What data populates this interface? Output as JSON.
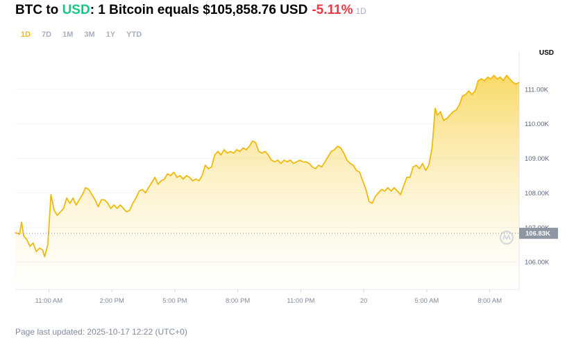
{
  "header": {
    "base": "BTC",
    "to_word": "to",
    "quote": "USD",
    "statement": ": 1 Bitcoin equals $105,858.76 USD",
    "change": "-5.11%",
    "period": "1D"
  },
  "ranges": [
    "1D",
    "7D",
    "1M",
    "3M",
    "1Y",
    "YTD"
  ],
  "active_range": "1D",
  "unit_label": "USD",
  "footer": "Page last updated: 2025-10-17 12:22 (UTC+0)",
  "colors": {
    "line": "#f0b90b",
    "positive": "#16c784",
    "negative": "#ea3943",
    "current_badge": "#8f96a3"
  },
  "watermark_icon": "coinmarketcap-logo-icon",
  "chart_data": {
    "type": "area",
    "x_unit": "hours from 11:00 AM (Oct 19)",
    "y_unit": "thousand USD",
    "ylim": [
      105.2,
      111.9
    ],
    "y_ticks": [
      106,
      107,
      108,
      109,
      110,
      111
    ],
    "y_tick_labels": [
      "106.00K",
      "107.00K",
      "108.00K",
      "109.00K",
      "110.00K",
      "111.00K"
    ],
    "x_ticks": [
      0,
      3,
      6,
      9,
      12,
      15,
      18,
      21
    ],
    "x_tick_labels": [
      "11:00 AM",
      "2:00 PM",
      "5:00 PM",
      "8:00 PM",
      "11:00 PM",
      "20",
      "5:00 AM",
      "8:00 AM"
    ],
    "current_value": 106.83,
    "current_label": "106.83K",
    "grid": true,
    "points": [
      [
        -1.6,
        106.85
      ],
      [
        -1.5,
        106.83
      ],
      [
        -1.4,
        106.8
      ],
      [
        -1.3,
        107.15
      ],
      [
        -1.2,
        106.75
      ],
      [
        -1.05,
        106.65
      ],
      [
        -0.9,
        106.45
      ],
      [
        -0.75,
        106.55
      ],
      [
        -0.6,
        106.3
      ],
      [
        -0.45,
        106.4
      ],
      [
        -0.3,
        106.35
      ],
      [
        -0.2,
        106.15
      ],
      [
        -0.05,
        106.5
      ],
      [
        0.1,
        107.95
      ],
      [
        0.25,
        107.5
      ],
      [
        0.4,
        107.35
      ],
      [
        0.55,
        107.45
      ],
      [
        0.7,
        107.55
      ],
      [
        0.85,
        107.85
      ],
      [
        1.0,
        107.7
      ],
      [
        1.15,
        107.85
      ],
      [
        1.3,
        107.65
      ],
      [
        1.45,
        107.8
      ],
      [
        1.6,
        107.95
      ],
      [
        1.75,
        108.15
      ],
      [
        1.9,
        108.1
      ],
      [
        2.05,
        107.95
      ],
      [
        2.2,
        107.8
      ],
      [
        2.35,
        107.6
      ],
      [
        2.5,
        107.8
      ],
      [
        2.65,
        107.8
      ],
      [
        2.8,
        107.7
      ],
      [
        2.95,
        107.55
      ],
      [
        3.1,
        107.65
      ],
      [
        3.25,
        107.55
      ],
      [
        3.4,
        107.65
      ],
      [
        3.55,
        107.55
      ],
      [
        3.7,
        107.45
      ],
      [
        3.85,
        107.5
      ],
      [
        4.0,
        107.7
      ],
      [
        4.15,
        107.85
      ],
      [
        4.3,
        108.05
      ],
      [
        4.45,
        108.1
      ],
      [
        4.6,
        108.0
      ],
      [
        4.75,
        108.15
      ],
      [
        4.9,
        108.3
      ],
      [
        5.05,
        108.45
      ],
      [
        5.2,
        108.25
      ],
      [
        5.35,
        108.35
      ],
      [
        5.5,
        108.4
      ],
      [
        5.65,
        108.55
      ],
      [
        5.8,
        108.5
      ],
      [
        5.95,
        108.6
      ],
      [
        6.1,
        108.45
      ],
      [
        6.25,
        108.5
      ],
      [
        6.4,
        108.4
      ],
      [
        6.55,
        108.5
      ],
      [
        6.7,
        108.45
      ],
      [
        6.85,
        108.35
      ],
      [
        7.0,
        108.4
      ],
      [
        7.15,
        108.35
      ],
      [
        7.3,
        108.5
      ],
      [
        7.45,
        108.8
      ],
      [
        7.6,
        108.7
      ],
      [
        7.75,
        108.75
      ],
      [
        7.9,
        109.1
      ],
      [
        8.05,
        109.2
      ],
      [
        8.2,
        109.1
      ],
      [
        8.35,
        109.25
      ],
      [
        8.5,
        109.15
      ],
      [
        8.65,
        109.2
      ],
      [
        8.8,
        109.15
      ],
      [
        8.95,
        109.25
      ],
      [
        9.1,
        109.2
      ],
      [
        9.25,
        109.3
      ],
      [
        9.4,
        109.25
      ],
      [
        9.55,
        109.35
      ],
      [
        9.7,
        109.5
      ],
      [
        9.85,
        109.45
      ],
      [
        10.0,
        109.2
      ],
      [
        10.15,
        109.15
      ],
      [
        10.3,
        109.2
      ],
      [
        10.45,
        109.1
      ],
      [
        10.6,
        108.95
      ],
      [
        10.75,
        108.9
      ],
      [
        10.9,
        108.95
      ],
      [
        11.05,
        108.85
      ],
      [
        11.2,
        108.95
      ],
      [
        11.35,
        108.9
      ],
      [
        11.5,
        108.95
      ],
      [
        11.65,
        108.85
      ],
      [
        11.8,
        108.9
      ],
      [
        11.95,
        108.95
      ],
      [
        12.1,
        108.9
      ],
      [
        12.25,
        108.9
      ],
      [
        12.4,
        108.85
      ],
      [
        12.55,
        108.75
      ],
      [
        12.7,
        108.7
      ],
      [
        12.85,
        108.8
      ],
      [
        13.0,
        108.75
      ],
      [
        13.15,
        108.9
      ],
      [
        13.3,
        109.05
      ],
      [
        13.45,
        109.2
      ],
      [
        13.6,
        109.25
      ],
      [
        13.75,
        109.35
      ],
      [
        13.9,
        109.3
      ],
      [
        14.05,
        109.15
      ],
      [
        14.2,
        108.95
      ],
      [
        14.35,
        108.85
      ],
      [
        14.5,
        108.8
      ],
      [
        14.65,
        108.65
      ],
      [
        14.8,
        108.6
      ],
      [
        14.95,
        108.35
      ],
      [
        15.1,
        108.1
      ],
      [
        15.25,
        107.75
      ],
      [
        15.4,
        107.7
      ],
      [
        15.55,
        107.9
      ],
      [
        15.7,
        108.0
      ],
      [
        15.85,
        108.1
      ],
      [
        16.0,
        108.05
      ],
      [
        16.15,
        108.15
      ],
      [
        16.3,
        108.05
      ],
      [
        16.45,
        108.15
      ],
      [
        16.6,
        108.05
      ],
      [
        16.75,
        107.95
      ],
      [
        16.9,
        108.2
      ],
      [
        17.05,
        108.45
      ],
      [
        17.2,
        108.45
      ],
      [
        17.35,
        108.75
      ],
      [
        17.5,
        108.8
      ],
      [
        17.65,
        108.7
      ],
      [
        17.8,
        108.85
      ],
      [
        17.95,
        108.65
      ],
      [
        18.1,
        108.8
      ],
      [
        18.25,
        109.3
      ],
      [
        18.4,
        110.45
      ],
      [
        18.5,
        110.25
      ],
      [
        18.65,
        110.35
      ],
      [
        18.8,
        110.1
      ],
      [
        18.95,
        110.15
      ],
      [
        19.1,
        110.25
      ],
      [
        19.25,
        110.35
      ],
      [
        19.4,
        110.4
      ],
      [
        19.55,
        110.55
      ],
      [
        19.7,
        110.8
      ],
      [
        19.85,
        110.85
      ],
      [
        20.0,
        110.95
      ],
      [
        20.15,
        110.85
      ],
      [
        20.3,
        110.95
      ],
      [
        20.45,
        111.25
      ],
      [
        20.6,
        111.3
      ],
      [
        20.75,
        111.25
      ],
      [
        20.9,
        111.35
      ],
      [
        21.05,
        111.3
      ],
      [
        21.2,
        111.4
      ],
      [
        21.35,
        111.3
      ],
      [
        21.5,
        111.35
      ],
      [
        21.65,
        111.25
      ],
      [
        21.8,
        111.4
      ],
      [
        21.95,
        111.3
      ],
      [
        22.1,
        111.2
      ],
      [
        22.25,
        111.15
      ],
      [
        22.4,
        111.2
      ]
    ]
  }
}
